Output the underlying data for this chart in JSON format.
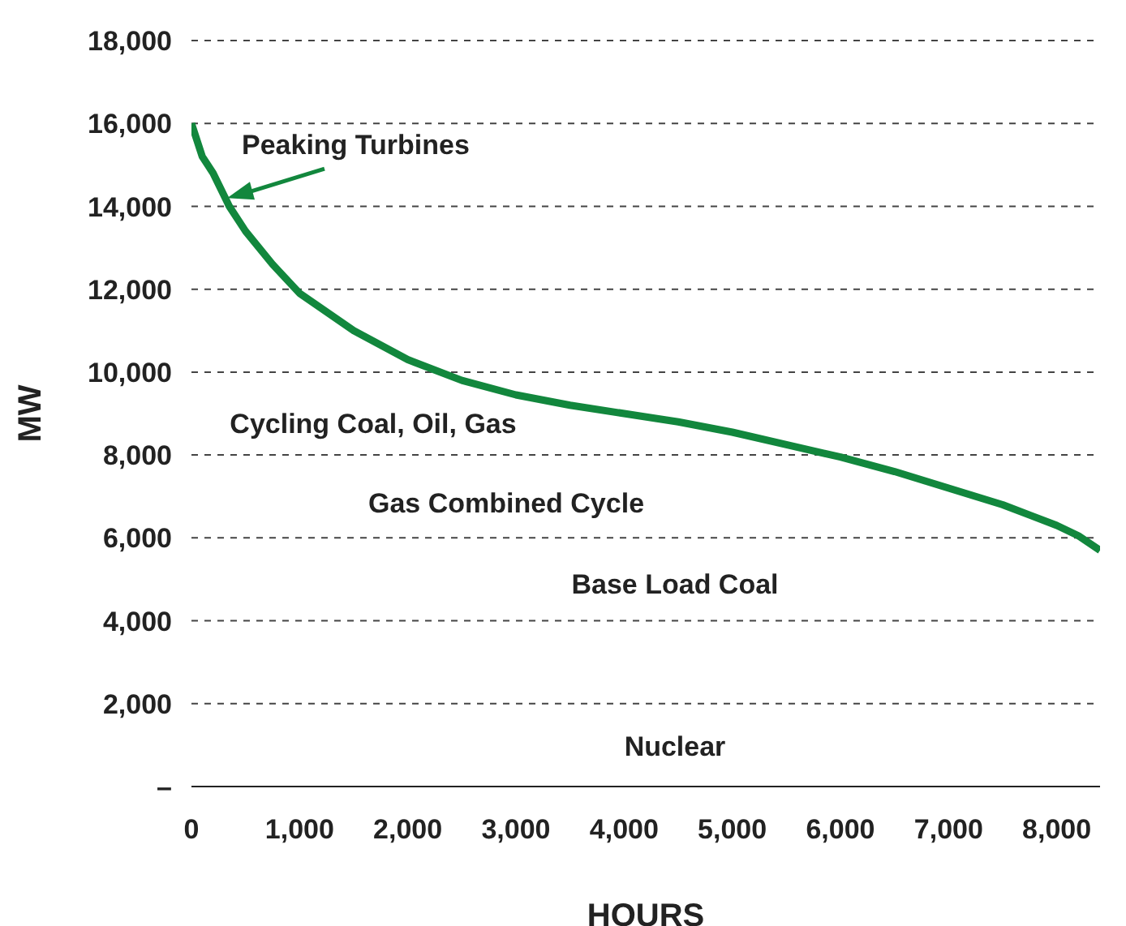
{
  "chart_data": {
    "type": "line",
    "xlabel": "HOURS",
    "ylabel": "MW",
    "grid": "y",
    "marker": "none",
    "line_style": "solid",
    "series": [
      {
        "color": "#12873d",
        "x": [
          0,
          100,
          200,
          350,
          500,
          750,
          1000,
          1500,
          2000,
          2500,
          3000,
          3500,
          4000,
          4500,
          5000,
          5500,
          6000,
          6500,
          7000,
          7500,
          8000,
          8200,
          8400
        ],
        "values": [
          16000,
          15200,
          14800,
          14000,
          13400,
          12600,
          11900,
          11000,
          10300,
          9800,
          9450,
          9200,
          9000,
          8800,
          8550,
          8250,
          7950,
          7600,
          7200,
          6800,
          6300,
          6050,
          5700
        ]
      }
    ],
    "xlim": [
      0,
      8400
    ],
    "xticks": [
      0,
      {
        "value": 1000,
        "label": "1,000"
      },
      {
        "value": 2000,
        "label": "2,000"
      },
      {
        "value": 3000,
        "label": "3,000"
      },
      {
        "value": 4000,
        "label": "4,000"
      },
      {
        "value": 5000,
        "label": "5,000"
      },
      {
        "value": 6000,
        "label": "6,000"
      },
      {
        "value": 7000,
        "label": "7,000"
      },
      {
        "value": 8000,
        "label": "8,000"
      }
    ],
    "ylim": [
      0,
      18000
    ],
    "yticks": [
      {
        "value": 0,
        "label": "–"
      },
      {
        "value": 2000,
        "label": "2,000"
      },
      {
        "value": 4000,
        "label": "4,000"
      },
      {
        "value": 6000,
        "label": "6,000"
      },
      {
        "value": 8000,
        "label": "8,000"
      },
      {
        "value": 10000,
        "label": "10,000"
      },
      {
        "value": 12000,
        "label": "12,000"
      },
      {
        "value": 14000,
        "label": "14,000"
      },
      {
        "value": 16000,
        "label": "16,000"
      },
      {
        "value": 18000,
        "label": "18,000"
      }
    ],
    "annotations": [
      {
        "text": "Peaking Turbines",
        "x": 330,
        "y": 14200
      },
      "Cycling Coal, Oil, Gas",
      "Gas Combined Cycle",
      "Base Load Coal",
      "Nuclear"
    ]
  }
}
